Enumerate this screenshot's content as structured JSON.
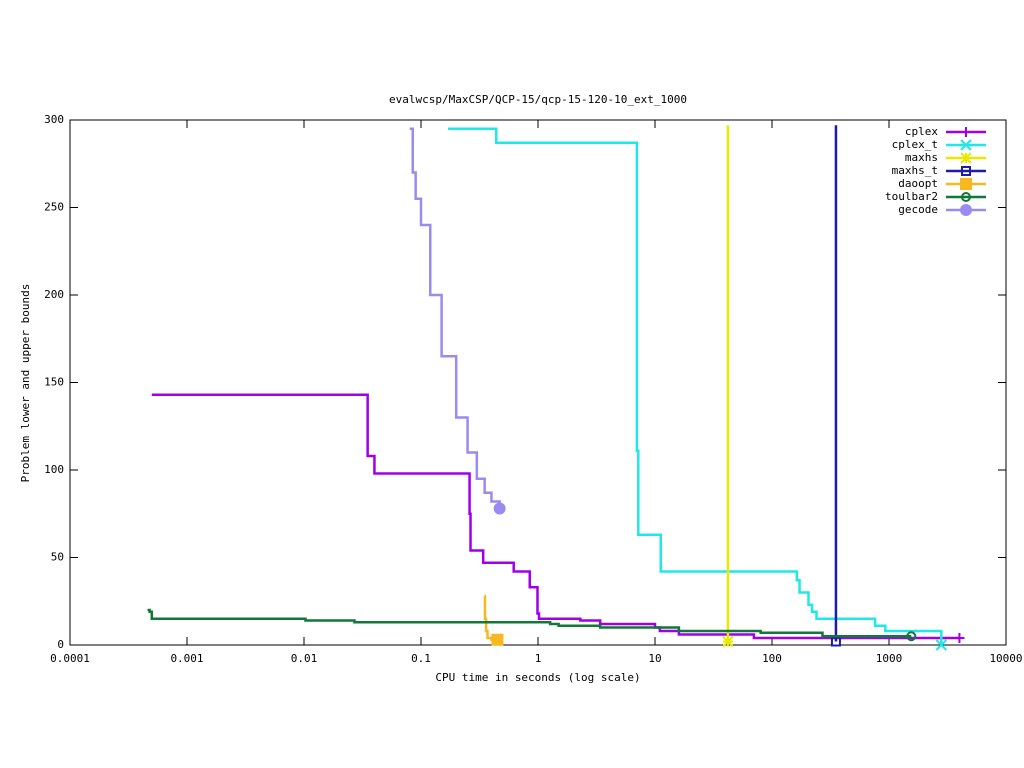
{
  "chart_data": {
    "type": "line",
    "steps": true,
    "title": "evalwcsp/MaxCSP/QCP-15/qcp-15-120-10_ext_1000",
    "x_label": "CPU time in seconds (log scale)",
    "y_label": "Problem lower and upper bounds",
    "x_log": true,
    "legend": "top-right",
    "xlim": [
      0.0001,
      10000
    ],
    "xticks": [
      0.0001,
      0.001,
      0.01,
      0.1,
      1,
      10,
      100,
      1000,
      10000
    ],
    "ylim": [
      0,
      300
    ],
    "yticks": [
      0,
      50,
      100,
      150,
      200,
      250,
      300
    ],
    "series": [
      {
        "name": "cplex",
        "color": "#a000e8",
        "marker": "plus",
        "x": [
          0.0005,
          0.035,
          0.04,
          0.26,
          0.265,
          0.34,
          0.62,
          0.85,
          0.99,
          1.02,
          2.3,
          3.4,
          10,
          11,
          16,
          70,
          4000
        ],
        "y": [
          143,
          108,
          98,
          75,
          54,
          47,
          42,
          33,
          18,
          15,
          14,
          12,
          10,
          8,
          6,
          4,
          4
        ]
      },
      {
        "name": "cplex_t",
        "color": "#20e8e8",
        "marker": "cross",
        "x": [
          0.17,
          0.44,
          7.0,
          7.2,
          11.2,
          163,
          172,
          205,
          220,
          240,
          760,
          930,
          2800
        ],
        "y": [
          295,
          287,
          111,
          63,
          42,
          37,
          30,
          23,
          19,
          15,
          11,
          8,
          0
        ]
      },
      {
        "name": "maxhs",
        "color": "#e8e800",
        "marker": "star",
        "x": [
          42,
          42
        ],
        "y": [
          297,
          2
        ]
      },
      {
        "name": "maxhs_t",
        "color": "#1c1ca8",
        "marker": "square",
        "x": [
          352,
          352
        ],
        "y": [
          297,
          2
        ]
      },
      {
        "name": "daoopt",
        "color": "#f8b820",
        "marker": "filled-square",
        "x": [
          0.35,
          0.352,
          0.36,
          0.37,
          0.4,
          0.45
        ],
        "y": [
          28,
          15,
          8,
          4,
          3,
          3
        ]
      },
      {
        "name": "toulbar2",
        "color": "#107838",
        "marker": "circle",
        "x": [
          0.00046,
          0.00048,
          0.0005,
          0.0103,
          0.027,
          1.27,
          1.5,
          3.4,
          16,
          80,
          270,
          1550
        ],
        "y": [
          20,
          19,
          15,
          14,
          13,
          12,
          11,
          10,
          8,
          7,
          5,
          5
        ]
      },
      {
        "name": "gecode",
        "color": "#9b8aef",
        "marker": "filled-circle",
        "x": [
          0.08,
          0.085,
          0.09,
          0.1,
          0.12,
          0.15,
          0.2,
          0.25,
          0.3,
          0.35,
          0.4,
          0.47
        ],
        "y": [
          295,
          270,
          255,
          240,
          200,
          165,
          130,
          110,
          95,
          87,
          82,
          78
        ]
      }
    ]
  }
}
